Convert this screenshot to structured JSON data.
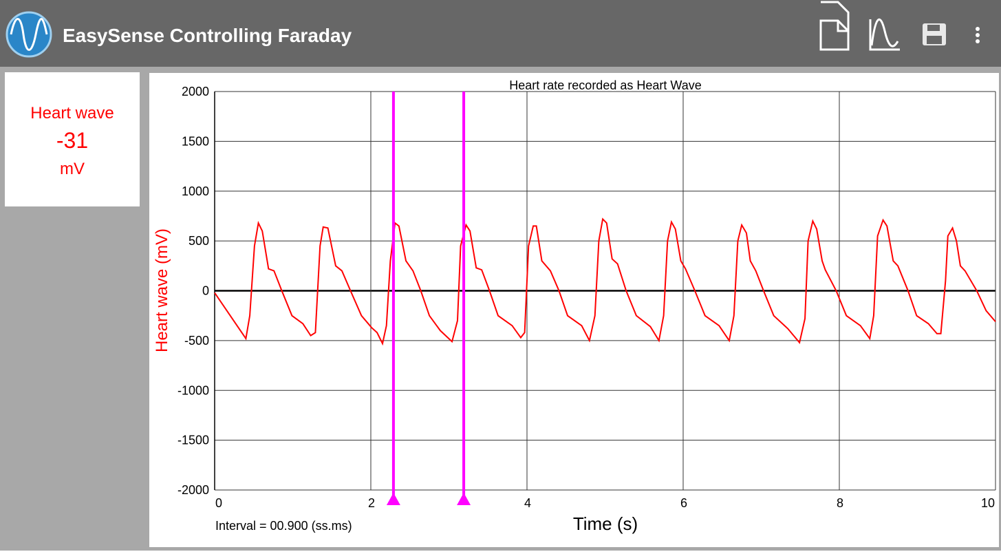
{
  "header": {
    "title": "EasySense Controlling Faraday"
  },
  "meter": {
    "label": "Heart wave",
    "value": -31,
    "unit": "mV"
  },
  "chart_data": {
    "type": "line",
    "title": "Heart rate recorded as Heart Wave",
    "x_label": "Time (s)",
    "y_label": "Heart wave (mV)",
    "annotation": "Interval = 00.900 (ss.ms)",
    "color": "#ff0000",
    "cursor_color": "#ff00ff",
    "cursors": [
      2.29,
      3.19
    ],
    "xlim": [
      0,
      10
    ],
    "xticks": [
      0,
      2,
      4,
      6,
      8,
      10
    ],
    "ylim": [
      -2000,
      2000
    ],
    "yticks": [
      -2000,
      -1500,
      -1000,
      -500,
      0,
      500,
      1000,
      1500,
      2000
    ],
    "grid": true,
    "x": [
      0,
      0.4,
      0.45,
      0.51,
      0.56,
      0.61,
      0.69,
      0.76,
      0.86,
      0.99,
      1.13,
      1.23,
      1.29,
      1.35,
      1.39,
      1.45,
      1.55,
      1.63,
      1.74,
      1.88,
      2.01,
      2.08,
      2.15,
      2.2,
      2.25,
      2.31,
      2.36,
      2.45,
      2.54,
      2.64,
      2.75,
      2.89,
      3.04,
      3.11,
      3.15,
      3.22,
      3.27,
      3.35,
      3.42,
      3.52,
      3.63,
      3.81,
      3.92,
      3.97,
      4.02,
      4.08,
      4.12,
      4.19,
      4.3,
      4.41,
      4.52,
      4.7,
      4.8,
      4.87,
      4.92,
      4.97,
      5.02,
      5.09,
      5.16,
      5.27,
      5.4,
      5.58,
      5.69,
      5.75,
      5.8,
      5.85,
      5.9,
      5.97,
      6.03,
      6.15,
      6.28,
      6.46,
      6.59,
      6.65,
      6.7,
      6.75,
      6.81,
      6.86,
      6.93,
      7.03,
      7.16,
      7.34,
      7.49,
      7.56,
      7.6,
      7.66,
      7.71,
      7.78,
      7.82,
      7.96,
      8.09,
      8.27,
      8.39,
      8.44,
      8.49,
      8.56,
      8.61,
      8.69,
      8.75,
      8.88,
      8.99,
      9.14,
      9.25,
      9.3,
      9.36,
      9.39,
      9.45,
      9.5,
      9.55,
      9.61,
      9.76,
      9.88,
      10
    ],
    "values": [
      -20,
      -480,
      -250,
      450,
      680,
      600,
      220,
      200,
      0,
      -250,
      -330,
      -450,
      -420,
      450,
      640,
      630,
      250,
      200,
      0,
      -250,
      -370,
      -420,
      -530,
      -350,
      300,
      680,
      650,
      300,
      200,
      0,
      -250,
      -400,
      -510,
      -300,
      450,
      660,
      600,
      230,
      210,
      0,
      -250,
      -350,
      -470,
      -420,
      450,
      650,
      650,
      300,
      200,
      0,
      -250,
      -350,
      -500,
      -250,
      500,
      720,
      680,
      320,
      270,
      0,
      -250,
      -360,
      -500,
      -250,
      500,
      690,
      620,
      300,
      220,
      0,
      -250,
      -350,
      -500,
      -250,
      500,
      660,
      580,
      300,
      200,
      0,
      -250,
      -380,
      -520,
      -280,
      500,
      700,
      620,
      300,
      210,
      0,
      -250,
      -350,
      -480,
      -250,
      550,
      710,
      650,
      300,
      250,
      0,
      -250,
      -330,
      -430,
      -430,
      100,
      550,
      630,
      500,
      250,
      200,
      0,
      -200,
      -310
    ]
  }
}
